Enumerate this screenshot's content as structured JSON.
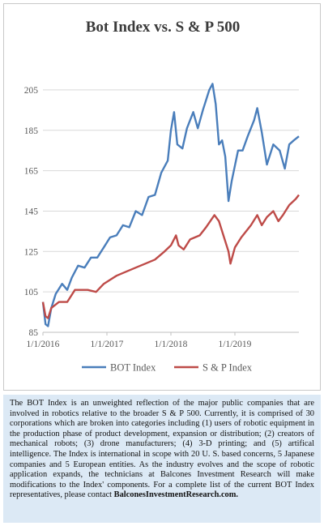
{
  "chart_data": {
    "type": "line",
    "title": "Bot Index vs. S & P 500",
    "xlabel": "",
    "ylabel": "",
    "ylim": [
      85,
      215
    ],
    "yticks": [
      85,
      105,
      125,
      145,
      165,
      185,
      205
    ],
    "xlim": [
      2016.0,
      2020.0
    ],
    "xticks": [
      {
        "x": 2016.0,
        "label": "1/1/2016"
      },
      {
        "x": 2017.0,
        "label": "1/1/2017"
      },
      {
        "x": 2018.0,
        "label": "1/1/2018"
      },
      {
        "x": 2019.0,
        "label": "1/1/2019"
      }
    ],
    "grid": "horizontal",
    "legend": "bottom",
    "series": [
      {
        "name": "BOT Index",
        "color": "#4a7ebb",
        "points": [
          [
            2016.0,
            100
          ],
          [
            2016.04,
            89
          ],
          [
            2016.08,
            88
          ],
          [
            2016.13,
            97
          ],
          [
            2016.2,
            104
          ],
          [
            2016.3,
            109
          ],
          [
            2016.38,
            106
          ],
          [
            2016.45,
            112
          ],
          [
            2016.55,
            118
          ],
          [
            2016.65,
            117
          ],
          [
            2016.75,
            122
          ],
          [
            2016.85,
            122
          ],
          [
            2016.95,
            127
          ],
          [
            2017.05,
            132
          ],
          [
            2017.15,
            133
          ],
          [
            2017.25,
            138
          ],
          [
            2017.35,
            137
          ],
          [
            2017.45,
            145
          ],
          [
            2017.55,
            143
          ],
          [
            2017.65,
            152
          ],
          [
            2017.75,
            153
          ],
          [
            2017.85,
            164
          ],
          [
            2017.95,
            170
          ],
          [
            2018.0,
            185
          ],
          [
            2018.05,
            194
          ],
          [
            2018.1,
            178
          ],
          [
            2018.18,
            176
          ],
          [
            2018.25,
            186
          ],
          [
            2018.35,
            194
          ],
          [
            2018.42,
            186
          ],
          [
            2018.5,
            195
          ],
          [
            2018.6,
            205
          ],
          [
            2018.65,
            208
          ],
          [
            2018.7,
            198
          ],
          [
            2018.75,
            178
          ],
          [
            2018.8,
            180
          ],
          [
            2018.85,
            172
          ],
          [
            2018.9,
            150
          ],
          [
            2018.95,
            160
          ],
          [
            2019.05,
            175
          ],
          [
            2019.12,
            175
          ],
          [
            2019.2,
            182
          ],
          [
            2019.3,
            190
          ],
          [
            2019.35,
            196
          ],
          [
            2019.42,
            184
          ],
          [
            2019.5,
            168
          ],
          [
            2019.6,
            178
          ],
          [
            2019.7,
            175
          ],
          [
            2019.78,
            166
          ],
          [
            2019.85,
            178
          ],
          [
            2019.92,
            180
          ],
          [
            2020.0,
            182
          ]
        ]
      },
      {
        "name": "S & P Index",
        "color": "#be4b48",
        "points": [
          [
            2016.0,
            100
          ],
          [
            2016.04,
            93
          ],
          [
            2016.08,
            92
          ],
          [
            2016.13,
            97
          ],
          [
            2016.25,
            100
          ],
          [
            2016.38,
            100
          ],
          [
            2016.5,
            106
          ],
          [
            2016.6,
            106
          ],
          [
            2016.7,
            106
          ],
          [
            2016.83,
            105
          ],
          [
            2016.95,
            109
          ],
          [
            2017.05,
            111
          ],
          [
            2017.15,
            113
          ],
          [
            2017.3,
            115
          ],
          [
            2017.45,
            117
          ],
          [
            2017.6,
            119
          ],
          [
            2017.75,
            121
          ],
          [
            2017.9,
            125
          ],
          [
            2018.0,
            128
          ],
          [
            2018.08,
            133
          ],
          [
            2018.12,
            128
          ],
          [
            2018.2,
            126
          ],
          [
            2018.3,
            131
          ],
          [
            2018.45,
            133
          ],
          [
            2018.55,
            137
          ],
          [
            2018.68,
            143
          ],
          [
            2018.75,
            140
          ],
          [
            2018.82,
            133
          ],
          [
            2018.9,
            125
          ],
          [
            2018.93,
            119
          ],
          [
            2019.0,
            127
          ],
          [
            2019.1,
            132
          ],
          [
            2019.25,
            138
          ],
          [
            2019.35,
            143
          ],
          [
            2019.42,
            138
          ],
          [
            2019.5,
            142
          ],
          [
            2019.6,
            145
          ],
          [
            2019.68,
            140
          ],
          [
            2019.75,
            143
          ],
          [
            2019.85,
            148
          ],
          [
            2019.95,
            151
          ],
          [
            2020.0,
            153
          ]
        ]
      }
    ]
  },
  "note": {
    "text": "The BOT Index is an unweighted reflection of the major public companies that are involved in robotics relative to the broader S & P 500. Currently, it is comprised of 30 corporations which are broken into categories including (1) users of robotic equipment in the production phase of product development, expansion or distribution; (2) creators of mechanical robots; (3) drone manufacturers; (4) 3-D printing; and (5) artifical intelligence. The Index is international in scope with 20 U. S. based concerns, 5 Japanese companies and 5 European entities. As the industry evolves and the scope of robotic application expands, the technicians at Balcones Investment Research will make modifications to the Index' components. For a complete list of the current BOT Index representatives, please contact ",
    "link": "BalconesInvestmentResearch.com."
  }
}
